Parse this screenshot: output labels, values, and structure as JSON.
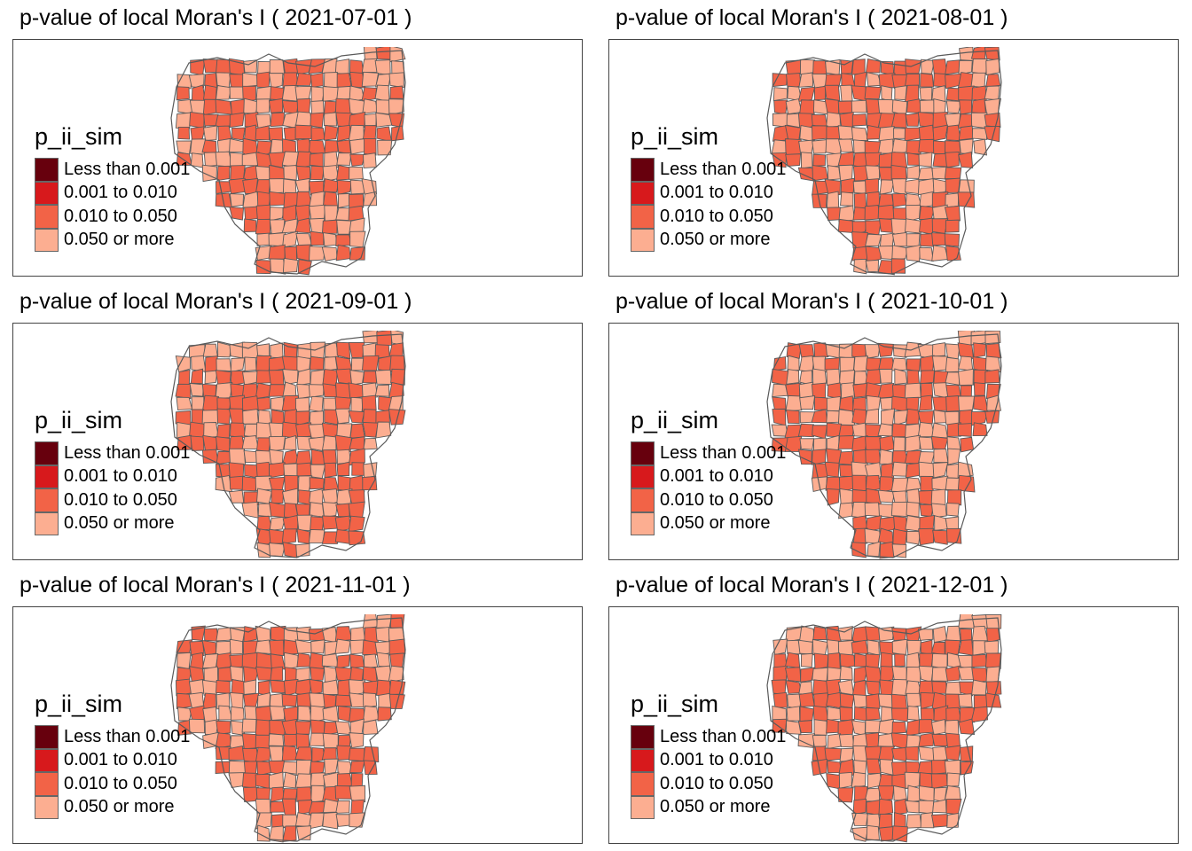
{
  "legend": {
    "title": "p_ii_sim",
    "classes": [
      {
        "label": "Less than 0.001",
        "color": "#67000d"
      },
      {
        "label": "0.001 to 0.010",
        "color": "#d7191c"
      },
      {
        "label": "0.010 to 0.050",
        "color": "#f26347"
      },
      {
        "label": "0.050 or more",
        "color": "#fcae91"
      }
    ]
  },
  "colors": {
    "border": "#666666",
    "polygon_outline": "#5a5a5a"
  },
  "panels": [
    {
      "title": "p-value of local Moran's I ( 2021-07-01 )",
      "seed": 7
    },
    {
      "title": "p-value of local Moran's I ( 2021-08-01 )",
      "seed": 8
    },
    {
      "title": "p-value of local Moran's I ( 2021-09-01 )",
      "seed": 9
    },
    {
      "title": "p-value of local Moran's I ( 2021-10-01 )",
      "seed": 10
    },
    {
      "title": "p-value of local Moran's I ( 2021-11-01 )",
      "seed": 11
    },
    {
      "title": "p-value of local Moran's I ( 2021-12-01 )",
      "seed": 12
    }
  ]
}
